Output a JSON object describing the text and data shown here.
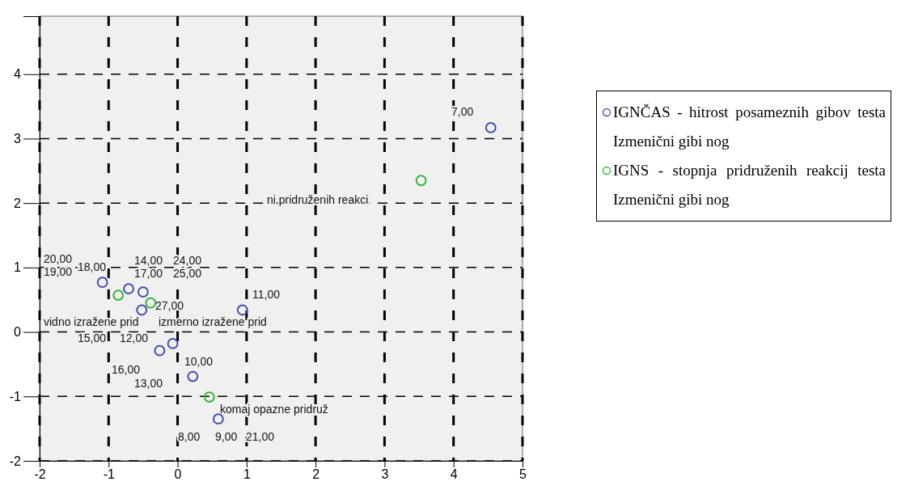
{
  "chart_data": {
    "type": "scatter",
    "marker": "circle",
    "grid": true,
    "legend": "right",
    "xlim": [
      -2,
      5
    ],
    "ylim": [
      -2,
      4.9
    ],
    "xticks": [
      -2,
      -1,
      0,
      1,
      2,
      3,
      4,
      5
    ],
    "yticks": [
      -2,
      -1,
      0,
      1,
      2,
      3,
      4
    ],
    "series": [
      {
        "name": "IGNČAS - hitrost posameznih gibov testa Izmenični gibi nog",
        "color": "#3f4fb0",
        "x": [
          4.54,
          0.94,
          -1.09,
          -0.71,
          -0.5,
          -0.52,
          -0.07,
          -0.26,
          0.22,
          0.59
        ],
        "values": [
          3.17,
          0.34,
          0.77,
          0.67,
          0.62,
          0.34,
          -0.18,
          -0.29,
          -0.69,
          -1.35
        ]
      },
      {
        "name": "IGNS - stopnja pridruženih reakcij testa  Izmenični gibi nog",
        "color": "#2eb82e",
        "x": [
          3.53,
          -0.86,
          -0.39,
          0.46
        ],
        "values": [
          2.35,
          0.57,
          0.45,
          -1.01
        ]
      }
    ],
    "annotations": [
      "19,00",
      "20,00",
      "18,00",
      "14,00",
      "17,00",
      "24,00",
      "25,00",
      "11,00",
      "27,00",
      "vidno izražene prid",
      "izmerno izražene prid",
      "15,00",
      "12,00",
      "16,00",
      "10,00",
      "13,00",
      "komaj opazne pridruž",
      "8,00",
      "9,00",
      "21,00",
      "7,00",
      "ni pridruženih reakci"
    ]
  }
}
